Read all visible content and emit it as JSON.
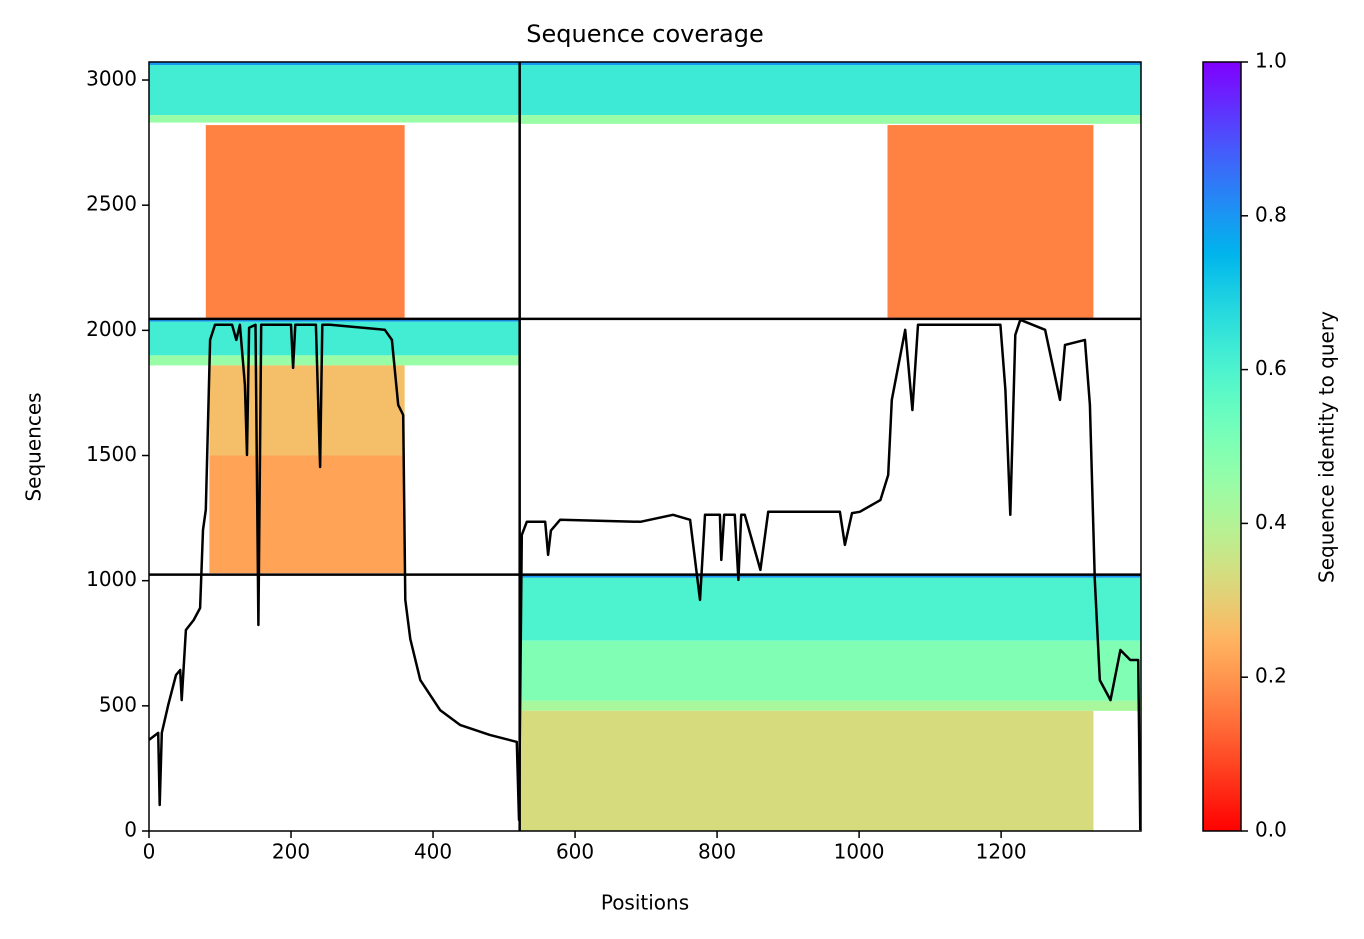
{
  "chart_data": {
    "type": "coverage",
    "title": "Sequence coverage",
    "xlabel": "Positions",
    "ylabel": "Sequences",
    "colorbar_label": "Sequence identity to query",
    "colormap": "rainbow_r",
    "xlim": [
      0,
      1397
    ],
    "ylim": [
      0,
      3072
    ],
    "xticks": [
      0,
      200,
      400,
      600,
      800,
      1000,
      1200
    ],
    "yticks": [
      0,
      500,
      1000,
      1500,
      2000,
      2500,
      3000
    ],
    "clim": [
      0,
      1
    ],
    "cticks": [
      {
        "value": 0,
        "label": "0.0"
      },
      0.2,
      0.4,
      0.6,
      0.8,
      {
        "value": 1,
        "label": "1.0"
      }
    ],
    "separators": {
      "x": [
        522
      ],
      "y": [
        1024,
        2046
      ]
    },
    "cells": [
      {
        "x": [
          0,
          522
        ],
        "y": [
          2860,
          3060
        ],
        "value": 0.62
      },
      {
        "x": [
          0,
          522
        ],
        "y": [
          2830,
          2860
        ],
        "value": 0.45
      },
      {
        "x": [
          0,
          522
        ],
        "y": [
          3060,
          3072
        ],
        "value": 0.8
      },
      {
        "x": [
          80,
          360
        ],
        "y": [
          2050,
          2820
        ],
        "value": 0.17
      },
      {
        "x": [
          522,
          1397
        ],
        "y": [
          2860,
          3060
        ],
        "value": 0.63
      },
      {
        "x": [
          522,
          1397
        ],
        "y": [
          2825,
          2860
        ],
        "value": 0.45
      },
      {
        "x": [
          522,
          1397
        ],
        "y": [
          3060,
          3072
        ],
        "value": 0.8
      },
      {
        "x": [
          1040,
          1330
        ],
        "y": [
          2050,
          2820
        ],
        "value": 0.17
      },
      {
        "x": [
          0,
          522
        ],
        "y": [
          1900,
          2035
        ],
        "value": 0.62
      },
      {
        "x": [
          0,
          522
        ],
        "y": [
          1860,
          1900
        ],
        "value": 0.45
      },
      {
        "x": [
          0,
          522
        ],
        "y": [
          2035,
          2046
        ],
        "value": 0.8
      },
      {
        "x": [
          85,
          360
        ],
        "y": [
          1500,
          1860
        ],
        "value": 0.27
      },
      {
        "x": [
          85,
          360
        ],
        "y": [
          1030,
          1500
        ],
        "value": 0.22
      },
      {
        "x": [
          522,
          1397
        ],
        "y": [
          760,
          1012
        ],
        "value": 0.6
      },
      {
        "x": [
          522,
          1397
        ],
        "y": [
          520,
          760
        ],
        "value": 0.5
      },
      {
        "x": [
          522,
          1397
        ],
        "y": [
          480,
          520
        ],
        "value": 0.42
      },
      {
        "x": [
          522,
          1397
        ],
        "y": [
          1012,
          1024
        ],
        "value": 0.8
      },
      {
        "x": [
          522,
          1330
        ],
        "y": [
          0,
          480
        ],
        "value": 0.33
      }
    ],
    "line": {
      "color": "#000000",
      "x": [
        0,
        13,
        15,
        18,
        27,
        38,
        44,
        46,
        52,
        63,
        72,
        76,
        80,
        86,
        93,
        117,
        123,
        128,
        135,
        138,
        141,
        150,
        154,
        158,
        180,
        200,
        203,
        206,
        235,
        241,
        244,
        255,
        332,
        342,
        351,
        358,
        361,
        368,
        382,
        410,
        438,
        480,
        518,
        521,
        525,
        532,
        558,
        562,
        566,
        579,
        692,
        738,
        762,
        776,
        783,
        804,
        806,
        810,
        825,
        830,
        834,
        839,
        861,
        872,
        973,
        980,
        990,
        1001,
        1030,
        1041,
        1046,
        1065,
        1075,
        1083,
        1199,
        1206,
        1213,
        1220,
        1227,
        1262,
        1283,
        1290,
        1318,
        1325,
        1332,
        1339,
        1354,
        1368,
        1382,
        1393,
        1396
      ],
      "y": [
        364,
        392,
        104,
        392,
        503,
        623,
        643,
        523,
        803,
        843,
        891,
        1203,
        1283,
        1962,
        2022,
        2022,
        1962,
        2022,
        1782,
        1502,
        2010,
        2022,
        823,
        2022,
        2022,
        2022,
        1850,
        2022,
        2022,
        1454,
        2022,
        2022,
        2002,
        1962,
        1702,
        1662,
        923,
        767,
        603,
        483,
        424,
        384,
        356,
        44,
        1183,
        1235,
        1235,
        1103,
        1200,
        1243,
        1235,
        1263,
        1243,
        923,
        1263,
        1263,
        1083,
        1263,
        1263,
        1003,
        1263,
        1263,
        1043,
        1275,
        1275,
        1143,
        1270,
        1275,
        1322,
        1422,
        1722,
        2002,
        1682,
        2022,
        2022,
        1762,
        1263,
        1982,
        2042,
        2002,
        1722,
        1942,
        1962,
        1702,
        1003,
        603,
        523,
        723,
        683,
        683,
        4
      ]
    }
  }
}
